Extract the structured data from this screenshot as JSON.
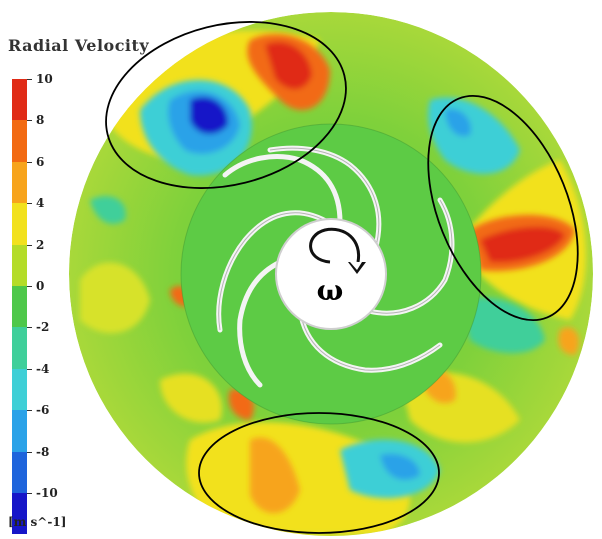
{
  "legend": {
    "title": "Radial Velocity",
    "unit": "[m s^-1]",
    "ticks": [
      "10",
      "8",
      "6",
      "4",
      "2",
      "0",
      "-2",
      "-4",
      "-6",
      "-8",
      "-10"
    ],
    "colors": [
      "#e02b16",
      "#f26a12",
      "#f7a41c",
      "#f2e11d",
      "#b4dc28",
      "#4ec84a",
      "#3fcf9a",
      "#3ecfd6",
      "#2aa2e8",
      "#1e64dc",
      "#1616c8"
    ]
  },
  "annotation": {
    "rotation_symbol": "ω"
  },
  "colors": {
    "high": "#e02b16",
    "mid_high": "#f2e11d",
    "zero": "#7fd13b",
    "low": "#1616c8"
  }
}
